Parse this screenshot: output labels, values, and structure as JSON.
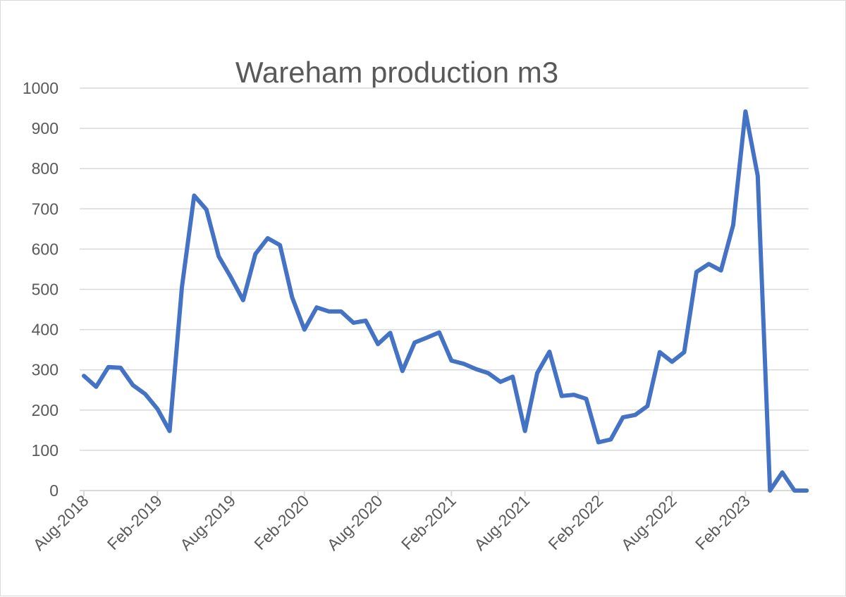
{
  "chart_data": {
    "type": "line",
    "title": "Wareham production m3",
    "xlabel": "",
    "ylabel": "",
    "ylim": [
      0,
      1000
    ],
    "yticks": [
      "0",
      "100",
      "200",
      "300",
      "400",
      "500",
      "600",
      "700",
      "800",
      "900",
      "1000"
    ],
    "xtick_labels": [
      "Aug-2018",
      "Feb-2019",
      "Aug-2019",
      "Feb-2020",
      "Aug-2020",
      "Feb-2021",
      "Aug-2021",
      "Feb-2022",
      "Aug-2022",
      "Feb-2023"
    ],
    "x": [
      "Aug-2018",
      "Sep-2018",
      "Oct-2018",
      "Nov-2018",
      "Dec-2018",
      "Jan-2019",
      "Feb-2019",
      "Mar-2019",
      "Apr-2019",
      "May-2019",
      "Jun-2019",
      "Jul-2019",
      "Aug-2019",
      "Sep-2019",
      "Oct-2019",
      "Nov-2019",
      "Dec-2019",
      "Jan-2020",
      "Feb-2020",
      "Mar-2020",
      "Apr-2020",
      "May-2020",
      "Jun-2020",
      "Jul-2020",
      "Aug-2020",
      "Sep-2020",
      "Oct-2020",
      "Nov-2020",
      "Dec-2020",
      "Jan-2021",
      "Feb-2021",
      "Mar-2021",
      "Apr-2021",
      "May-2021",
      "Jun-2021",
      "Jul-2021",
      "Aug-2021",
      "Sep-2021",
      "Oct-2021",
      "Nov-2021",
      "Dec-2021",
      "Jan-2022",
      "Feb-2022",
      "Mar-2022",
      "Apr-2022",
      "May-2022",
      "Jun-2022",
      "Jul-2022",
      "Aug-2022",
      "Sep-2022",
      "Oct-2022",
      "Nov-2022",
      "Dec-2022",
      "Jan-2023",
      "Feb-2023",
      "Mar-2023",
      "Apr-2023",
      "May-2023",
      "Jun-2023",
      "Jul-2023"
    ],
    "series": [
      {
        "name": "",
        "color": "#4472c4",
        "values": [
          285,
          258,
          307,
          305,
          262,
          240,
          203,
          148,
          505,
          733,
          698,
          582,
          530,
          473,
          588,
          627,
          610,
          480,
          400,
          455,
          445,
          445,
          417,
          422,
          364,
          392,
          297,
          368,
          380,
          393,
          323,
          315,
          302,
          292,
          270,
          283,
          148,
          292,
          345,
          235,
          238,
          228,
          120,
          127,
          182,
          188,
          210,
          344,
          320,
          344,
          543,
          563,
          547,
          660,
          942,
          782,
          0,
          45,
          0,
          0
        ]
      }
    ],
    "grid": true,
    "legend": "none"
  }
}
